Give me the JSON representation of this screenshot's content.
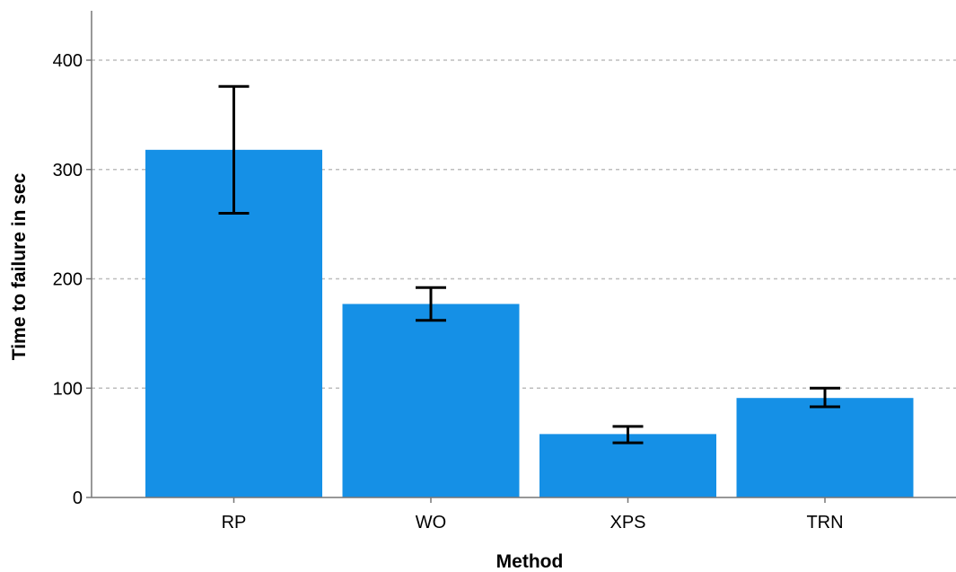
{
  "chart_data": {
    "type": "bar",
    "title": "",
    "xlabel": "Method",
    "ylabel": "Time to failure in sec",
    "categories": [
      "RP",
      "WO",
      "XPS",
      "TRN"
    ],
    "values": [
      318,
      177,
      58,
      91
    ],
    "error_bars": {
      "lower": [
        260,
        162,
        50,
        83
      ],
      "upper": [
        376,
        192,
        65,
        100
      ]
    },
    "ylim": [
      0,
      440
    ],
    "yticks": [
      0,
      100,
      200,
      300,
      400
    ],
    "grid": "horizontal dashed",
    "colors": {
      "bar": "#1590E6",
      "error_bar": "#000000",
      "grid": "#bdbdbd",
      "axis": "#777777"
    }
  }
}
